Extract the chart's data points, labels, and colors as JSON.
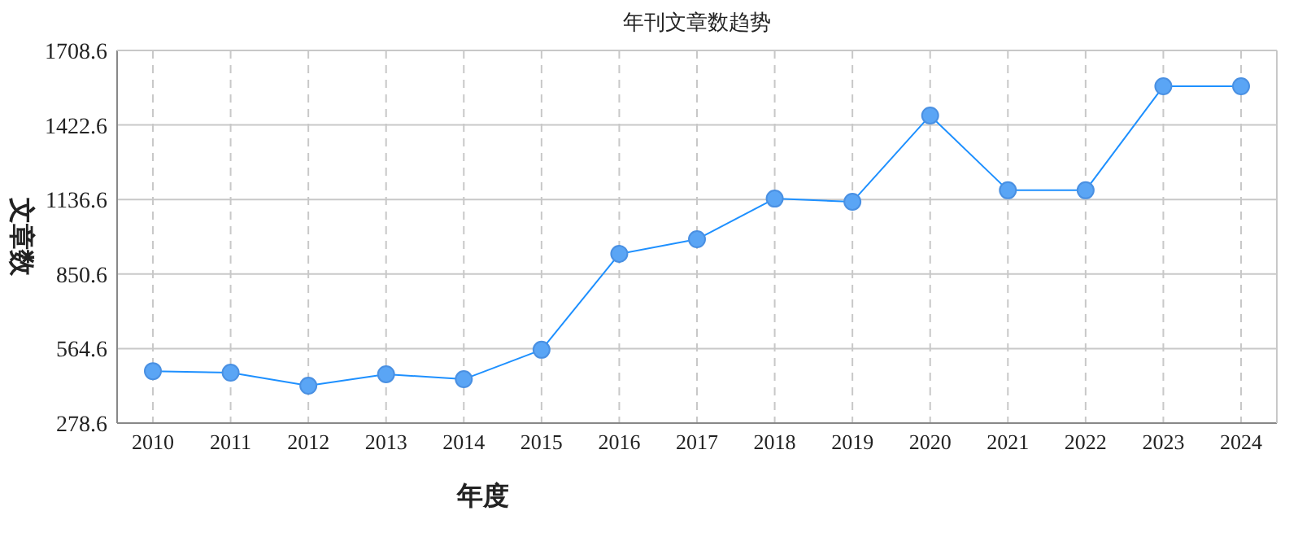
{
  "chart_data": {
    "type": "line",
    "title": "年刊文章数趋势",
    "xlabel": "年度",
    "ylabel": "文章数",
    "categories": [
      "2010",
      "2011",
      "2012",
      "2013",
      "2014",
      "2015",
      "2016",
      "2017",
      "2018",
      "2019",
      "2020",
      "2021",
      "2022",
      "2023",
      "2024"
    ],
    "series": [
      {
        "color": "#1e90ff",
        "values": [
          478,
          472,
          422,
          466,
          447,
          560,
          928,
          984,
          1140,
          1128,
          1459,
          1172,
          1172,
          1571,
          1571
        ]
      }
    ],
    "ylim": [
      278.6,
      1708.6
    ],
    "yticks": [
      278.6,
      564.6,
      850.6,
      1136.6,
      1422.6,
      1708.6
    ],
    "grid": true,
    "marker": "circle",
    "line_style": "solid"
  }
}
